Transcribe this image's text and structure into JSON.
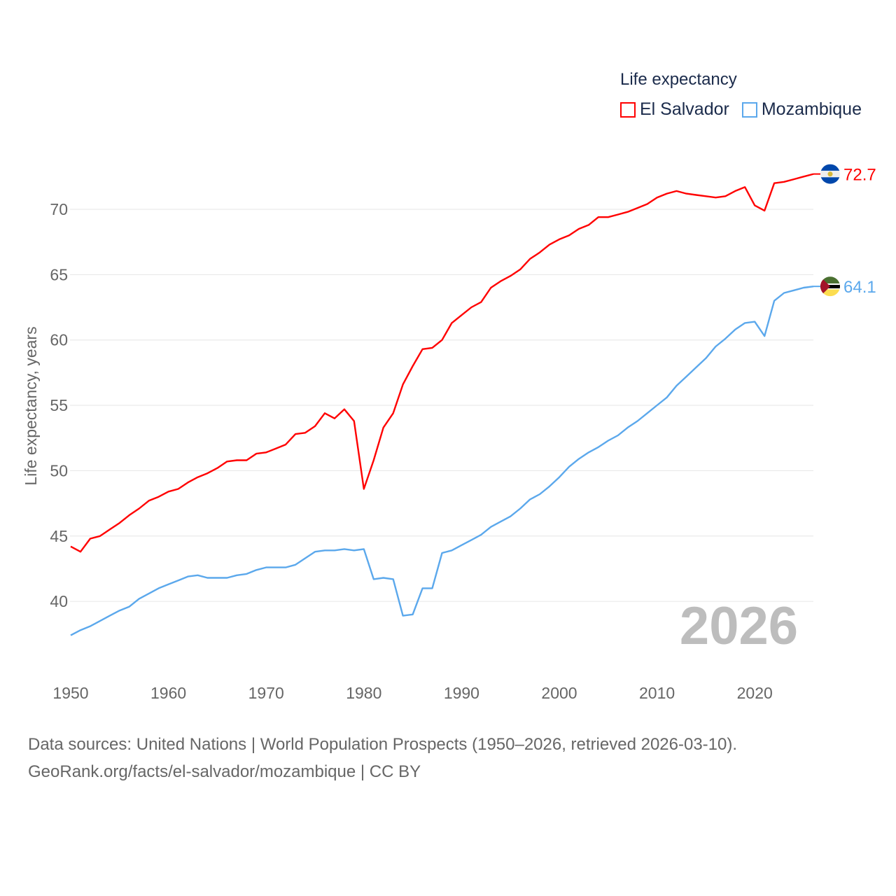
{
  "chart_data": {
    "type": "line",
    "title": "",
    "legend_title": "Life expectancy",
    "legend_position": "top-right",
    "ylabel": "Life expectancy, years",
    "xlabel": "",
    "xlim": [
      1950,
      2026
    ],
    "ylim": [
      36,
      74
    ],
    "yticks": [
      40,
      45,
      50,
      55,
      60,
      65,
      70
    ],
    "xticks": [
      1950,
      1960,
      1970,
      1980,
      1990,
      2000,
      2010,
      2020
    ],
    "grid": true,
    "year_watermark": "2026",
    "x": [
      1950,
      1951,
      1952,
      1953,
      1954,
      1955,
      1956,
      1957,
      1958,
      1959,
      1960,
      1961,
      1962,
      1963,
      1964,
      1965,
      1966,
      1967,
      1968,
      1969,
      1970,
      1971,
      1972,
      1973,
      1974,
      1975,
      1976,
      1977,
      1978,
      1979,
      1980,
      1981,
      1982,
      1983,
      1984,
      1985,
      1986,
      1987,
      1988,
      1989,
      1990,
      1991,
      1992,
      1993,
      1994,
      1995,
      1996,
      1997,
      1998,
      1999,
      2000,
      2001,
      2002,
      2003,
      2004,
      2005,
      2006,
      2007,
      2008,
      2009,
      2010,
      2011,
      2012,
      2013,
      2014,
      2015,
      2016,
      2017,
      2018,
      2019,
      2020,
      2021,
      2022,
      2023,
      2024,
      2025,
      2026
    ],
    "series": [
      {
        "name": "El Salvador",
        "color": "#ff0000",
        "end_label": "72.7",
        "values": [
          44.2,
          43.8,
          44.8,
          45.0,
          45.5,
          46.0,
          46.6,
          47.1,
          47.7,
          48.0,
          48.4,
          48.6,
          49.1,
          49.5,
          49.8,
          50.2,
          50.7,
          50.8,
          50.8,
          51.3,
          51.4,
          51.7,
          52.0,
          52.8,
          52.9,
          53.4,
          54.4,
          54.0,
          54.7,
          53.8,
          48.6,
          50.8,
          53.3,
          54.4,
          56.6,
          58.0,
          59.3,
          59.4,
          60.0,
          61.3,
          61.9,
          62.5,
          62.9,
          64.0,
          64.5,
          64.9,
          65.4,
          66.2,
          66.7,
          67.3,
          67.7,
          68.0,
          68.5,
          68.8,
          69.4,
          69.4,
          69.6,
          69.8,
          70.1,
          70.4,
          70.9,
          71.2,
          71.4,
          71.2,
          71.1,
          71.0,
          70.9,
          71.0,
          71.4,
          71.7,
          70.3,
          69.9,
          72.0,
          72.1,
          72.3,
          72.5,
          72.7
        ]
      },
      {
        "name": "Mozambique",
        "color": "#5ba8ec",
        "end_label": "64.1",
        "values": [
          37.4,
          37.8,
          38.1,
          38.5,
          38.9,
          39.3,
          39.6,
          40.2,
          40.6,
          41.0,
          41.3,
          41.6,
          41.9,
          42.0,
          41.8,
          41.8,
          41.8,
          42.0,
          42.1,
          42.4,
          42.6,
          42.6,
          42.6,
          42.8,
          43.3,
          43.8,
          43.9,
          43.9,
          44.0,
          43.9,
          44.0,
          41.7,
          41.8,
          41.7,
          38.9,
          39.0,
          41.0,
          41.0,
          43.7,
          43.9,
          44.3,
          44.7,
          45.1,
          45.7,
          46.1,
          46.5,
          47.1,
          47.8,
          48.2,
          48.8,
          49.5,
          50.3,
          50.9,
          51.4,
          51.8,
          52.3,
          52.7,
          53.3,
          53.8,
          54.4,
          55.0,
          55.6,
          56.5,
          57.2,
          57.9,
          58.6,
          59.5,
          60.1,
          60.8,
          61.3,
          61.4,
          60.3,
          63.0,
          63.6,
          63.8,
          64.0,
          64.1
        ]
      }
    ]
  },
  "footer": {
    "line1": "Data sources: United Nations | World Population Prospects (1950–2026, retrieved 2026-03-10).",
    "line2": "GeoRank.org/facts/el-salvador/mozambique | CC BY"
  }
}
